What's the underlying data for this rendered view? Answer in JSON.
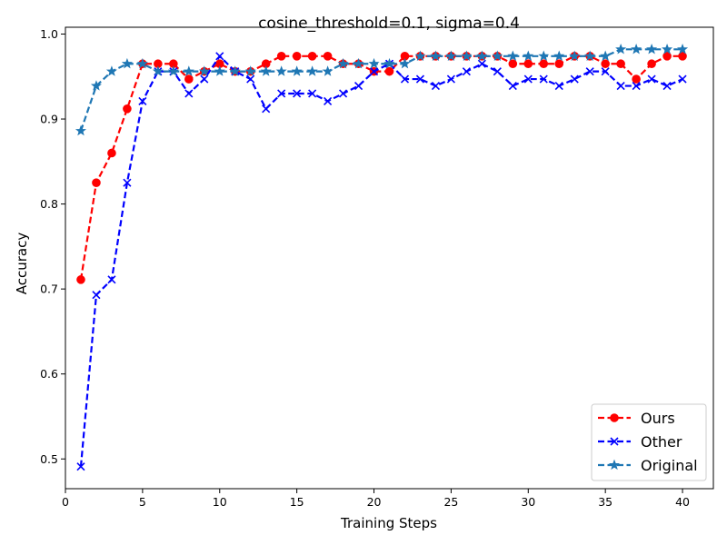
{
  "chart_data": {
    "type": "line",
    "title": "cosine_threshold=0.1, sigma=0.4",
    "xlabel": "Training Steps",
    "ylabel": "Accuracy",
    "xlim": [
      0,
      42
    ],
    "ylim": [
      0.465,
      1.008
    ],
    "xticks": [
      0,
      5,
      10,
      15,
      20,
      25,
      30,
      35,
      40
    ],
    "xtick_labels": [
      "0",
      "5",
      "10",
      "15",
      "20",
      "25",
      "30",
      "35",
      "40"
    ],
    "yticks": [
      0.5,
      0.6,
      0.7,
      0.8,
      0.9,
      1.0
    ],
    "ytick_labels": [
      "0.5",
      "0.6",
      "0.7",
      "0.8",
      "0.9",
      "1.0"
    ],
    "grid": false,
    "legend_position": "bottom-right",
    "x": [
      1,
      2,
      3,
      4,
      5,
      6,
      7,
      8,
      9,
      10,
      11,
      12,
      13,
      14,
      15,
      16,
      17,
      18,
      19,
      20,
      21,
      22,
      23,
      24,
      25,
      26,
      27,
      28,
      29,
      30,
      31,
      32,
      33,
      34,
      35,
      36,
      37,
      38,
      39,
      40
    ],
    "series": [
      {
        "name": "Ours",
        "color": "#ff0000",
        "marker": "circle",
        "values": [
          0.711,
          0.825,
          0.86,
          0.912,
          0.965,
          0.965,
          0.965,
          0.947,
          0.956,
          0.965,
          0.956,
          0.956,
          0.965,
          0.974,
          0.974,
          0.974,
          0.974,
          0.965,
          0.965,
          0.956,
          0.956,
          0.974,
          0.974,
          0.974,
          0.974,
          0.974,
          0.974,
          0.974,
          0.965,
          0.965,
          0.965,
          0.965,
          0.974,
          0.974,
          0.965,
          0.965,
          0.947,
          0.965,
          0.974,
          0.974
        ]
      },
      {
        "name": "Other",
        "color": "#0000ff",
        "marker": "x",
        "values": [
          0.491,
          0.693,
          0.711,
          0.825,
          0.921,
          0.956,
          0.956,
          0.93,
          0.947,
          0.974,
          0.956,
          0.947,
          0.912,
          0.93,
          0.93,
          0.93,
          0.921,
          0.93,
          0.939,
          0.956,
          0.965,
          0.947,
          0.947,
          0.939,
          0.947,
          0.956,
          0.965,
          0.956,
          0.939,
          0.947,
          0.947,
          0.939,
          0.947,
          0.956,
          0.956,
          0.939,
          0.939,
          0.947,
          0.939,
          0.947
        ]
      },
      {
        "name": "Original",
        "color": "#1f77b4",
        "marker": "star",
        "values": [
          0.886,
          0.939,
          0.956,
          0.965,
          0.965,
          0.956,
          0.956,
          0.956,
          0.956,
          0.956,
          0.956,
          0.956,
          0.956,
          0.956,
          0.956,
          0.956,
          0.956,
          0.965,
          0.965,
          0.965,
          0.965,
          0.965,
          0.974,
          0.974,
          0.974,
          0.974,
          0.974,
          0.974,
          0.974,
          0.974,
          0.974,
          0.974,
          0.974,
          0.974,
          0.974,
          0.982,
          0.982,
          0.982,
          0.982,
          0.982
        ]
      }
    ]
  }
}
